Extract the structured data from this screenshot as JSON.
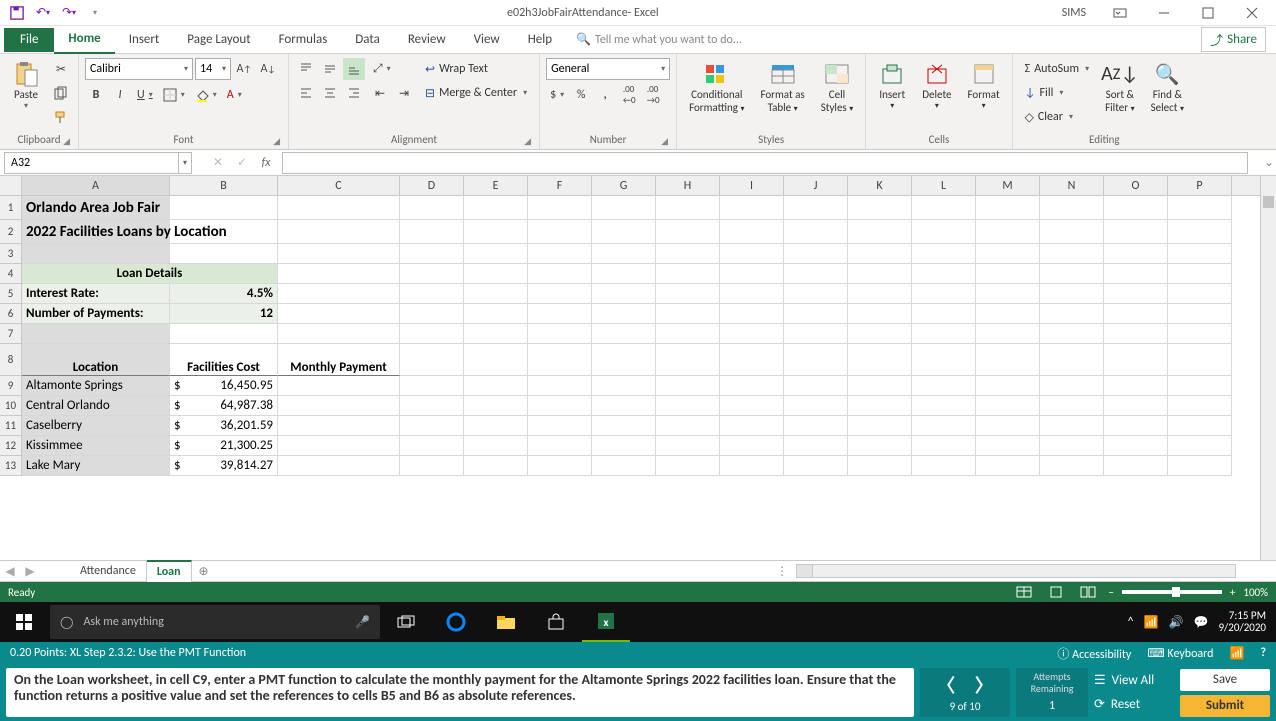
{
  "titlebar": {
    "title": "e02h3JobFairAttendance- Excel",
    "user": "SIMS"
  },
  "tabs": {
    "file": "File",
    "home": "Home",
    "insert": "Insert",
    "pageLayout": "Page Layout",
    "formulas": "Formulas",
    "data": "Data",
    "review": "Review",
    "view": "View",
    "help": "Help",
    "tellme": "Tell me what you want to do...",
    "share": "Share"
  },
  "ribbon": {
    "clipboard": {
      "label": "Clipboard",
      "paste": "Paste"
    },
    "font": {
      "label": "Font",
      "name": "Calibri",
      "size": "14"
    },
    "alignment": {
      "label": "Alignment",
      "wrap": "Wrap Text",
      "merge": "Merge & Center"
    },
    "number": {
      "label": "Number",
      "format": "General"
    },
    "styles": {
      "label": "Styles",
      "cond": "Conditional",
      "cond2": "Formatting",
      "table": "Format as",
      "table2": "Table",
      "cell": "Cell",
      "cell2": "Styles"
    },
    "cells": {
      "label": "Cells",
      "insert": "Insert",
      "delete": "Delete",
      "format": "Format"
    },
    "editing": {
      "label": "Editing",
      "autosum": "AutoSum",
      "fill": "Fill",
      "clear": "Clear",
      "sort": "Sort &",
      "sort2": "Filter",
      "find": "Find &",
      "find2": "Select"
    }
  },
  "namebox": "A32",
  "columns": [
    "A",
    "B",
    "C",
    "D",
    "E",
    "F",
    "G",
    "H",
    "I",
    "J",
    "K",
    "L",
    "M",
    "N",
    "O",
    "P"
  ],
  "sheet": {
    "titles": {
      "r1": "Orlando Area Job Fair",
      "r2": "2022 Facilities Loans by Location"
    },
    "loanDetailsHeader": "Loan Details",
    "labels": {
      "interestRate": "Interest Rate:",
      "numPayments": "Number of Payments:",
      "location": "Location",
      "facCost": "Facilities Cost",
      "monthlyPmt": "Monthly Payment"
    },
    "values": {
      "interestRate": "4.5%",
      "numPayments": "12"
    },
    "rows": [
      {
        "loc": "Altamonte Springs",
        "sym": "$",
        "cost": "16,450.95"
      },
      {
        "loc": "Central Orlando",
        "sym": "$",
        "cost": "64,987.38"
      },
      {
        "loc": "Caselberry",
        "sym": "$",
        "cost": "36,201.59"
      },
      {
        "loc": "Kissimmee",
        "sym": "$",
        "cost": "21,300.25"
      },
      {
        "loc": "Lake Mary",
        "sym": "$",
        "cost": "39,814.27"
      }
    ]
  },
  "sheetTabs": {
    "attendance": "Attendance",
    "loan": "Loan"
  },
  "statusbar": {
    "ready": "Ready",
    "zoom": "100%"
  },
  "taskbar": {
    "search": "Ask me anything",
    "time": "7:15 PM",
    "date": "9/20/2020"
  },
  "instrHeader": {
    "points": "0.20 Points: XL Step 2.3.2: Use the PMT Function",
    "access": "Accessibility",
    "keyboard": "Keyboard"
  },
  "instructions": "On the Loan worksheet, in cell C9, enter a PMT function to calculate the monthly payment for the Altamonte Springs 2022 facilities loan. Ensure that the function returns a positive value and set the references to cells B5 and B6 as absolute references.",
  "nav": {
    "counter": "9 of 10"
  },
  "attempts": {
    "label1": "Attempts",
    "label2": "Remaining",
    "count": "1"
  },
  "sideBtns": {
    "viewAll": "View All",
    "reset": "Reset"
  },
  "actions": {
    "save": "Save",
    "submit": "Submit"
  }
}
